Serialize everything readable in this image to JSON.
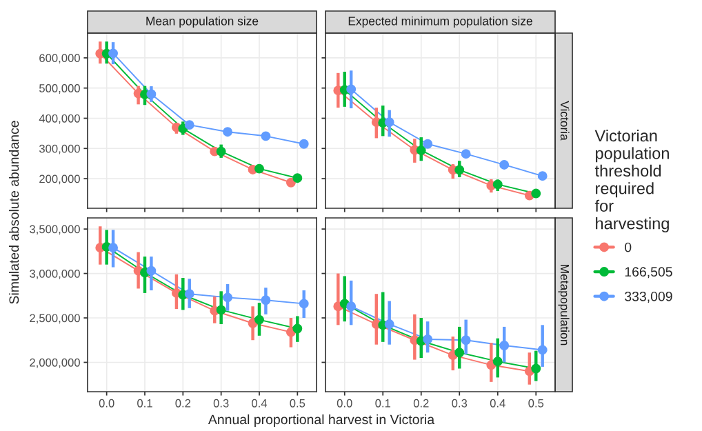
{
  "chart_data": [
    {
      "type": "line",
      "title": "Mean population size",
      "ylabel": "Simulated absolute abundance",
      "tick_labels": "y",
      "grid": true,
      "marker": "circle",
      "line_style": "solid",
      "legend": "right",
      "legend_title": "Victorian population threshold required for harvesting",
      "xlim": [
        -0.05,
        0.55
      ],
      "xticks": [
        0,
        0.1,
        0.2,
        0.3,
        0.4,
        0.5
      ],
      "ylim": [
        102000,
        682000
      ],
      "yticks": [
        {
          "value": 200000,
          "label": "200,000"
        },
        {
          "value": 300000,
          "label": "300,000"
        },
        {
          "value": 400000,
          "label": "400,000"
        },
        {
          "value": 500000,
          "label": "500,000"
        },
        {
          "value": 600000,
          "label": "600,000"
        }
      ],
      "series": [
        {
          "name": "0",
          "color": "#f8766d",
          "x": [
            -0.017,
            0.083,
            0.183,
            0.283,
            0.383,
            0.483
          ],
          "values": [
            614000,
            482000,
            370000,
            290000,
            230000,
            187000
          ],
          "errors": [
            [
              581000,
              654000
            ],
            [
              446000,
              507000
            ],
            [
              349000,
              385000
            ],
            [
              279000,
              301000
            ],
            [
              225000,
              237000
            ],
            [
              181000,
              193000
            ]
          ]
        },
        {
          "name": "166,505",
          "color": "#00ba38",
          "x": [
            0,
            0.1,
            0.2,
            0.3,
            0.4,
            0.5
          ],
          "values": [
            614000,
            479000,
            366000,
            290000,
            233000,
            202000
          ],
          "errors": [
            [
              581000,
              654000
            ],
            [
              444000,
              507000
            ],
            [
              345000,
              389000
            ],
            [
              269000,
              313000
            ],
            [
              225000,
              240000
            ],
            null
          ]
        },
        {
          "name": "333,009",
          "color": "#619cff",
          "x": [
            0.017,
            0.117,
            0.217,
            0.317,
            0.417,
            0.517
          ],
          "values": [
            615000,
            480000,
            378000,
            355000,
            341000,
            315000
          ],
          "errors": [
            [
              579000,
              652000
            ],
            [
              454000,
              506000
            ],
            [
              371000,
              385000
            ],
            null,
            null,
            null
          ]
        }
      ]
    },
    {
      "type": "line",
      "title": "Expected minimum population size",
      "y2label": "Victoria",
      "tick_labels": false,
      "grid": true,
      "marker": "circle",
      "line_style": "solid",
      "legend": "right",
      "xlim": [
        -0.05,
        0.55
      ],
      "xticks": [
        0,
        0.1,
        0.2,
        0.3,
        0.4,
        0.5
      ],
      "ylim": [
        102000,
        682000
      ],
      "yticks": [
        200000,
        300000,
        400000,
        500000,
        600000
      ],
      "series": [
        {
          "name": "0",
          "color": "#f8766d",
          "x": [
            -0.017,
            0.083,
            0.183,
            0.283,
            0.383,
            0.483
          ],
          "values": [
            492000,
            387000,
            295000,
            229000,
            177000,
            144000
          ],
          "errors": [
            [
              435000,
              550000
            ],
            [
              334000,
              435000
            ],
            [
              253000,
              332000
            ],
            [
              200000,
              248000
            ],
            [
              154000,
              198000
            ],
            [
              134000,
              154000
            ]
          ]
        },
        {
          "name": "166,505",
          "color": "#00ba38",
          "x": [
            0,
            0.1,
            0.2,
            0.3,
            0.4,
            0.5
          ],
          "values": [
            494000,
            385000,
            294000,
            229000,
            181000,
            151000
          ],
          "errors": [
            [
              438000,
              554000
            ],
            [
              341000,
              442000
            ],
            [
              259000,
              337000
            ],
            [
              205000,
              259000
            ],
            [
              159000,
              197000
            ],
            [
              144000,
              158000
            ]
          ]
        },
        {
          "name": "333,009",
          "color": "#619cff",
          "x": [
            0.017,
            0.117,
            0.217,
            0.317,
            0.417,
            0.517
          ],
          "values": [
            496000,
            387000,
            315000,
            282000,
            246000,
            209000
          ],
          "errors": [
            [
              433000,
              558000
            ],
            [
              339000,
              427000
            ],
            [
              305000,
              324000
            ],
            [
              269000,
              294000
            ],
            [
              235000,
              256000
            ],
            [
              195000,
              223000
            ]
          ]
        }
      ]
    },
    {
      "type": "line",
      "xlabel": "Annual proportional harvest in Victoria",
      "grid": true,
      "marker": "circle",
      "line_style": "solid",
      "legend": "right",
      "xlim": [
        -0.05,
        0.55
      ],
      "xticks": [
        {
          "value": 0,
          "label": "0.0"
        },
        0.1,
        0.2,
        0.3,
        0.4,
        0.5
      ],
      "ylim": [
        1670000,
        3625000
      ],
      "yticks": [
        {
          "value": 2000000,
          "label": "2,000,000"
        },
        {
          "value": 2500000,
          "label": "2,500,000"
        },
        {
          "value": 3000000,
          "label": "3,000,000"
        },
        {
          "value": 3500000,
          "label": "3,500,000"
        }
      ],
      "series": [
        {
          "name": "0",
          "color": "#f8766d",
          "x": [
            -0.017,
            0.083,
            0.183,
            0.283,
            0.383,
            0.483
          ],
          "values": [
            3290000,
            3030000,
            2780000,
            2580000,
            2440000,
            2340000
          ],
          "errors": [
            [
              3100000,
              3530000
            ],
            [
              2830000,
              3240000
            ],
            [
              2600000,
              2990000
            ],
            [
              2440000,
              2740000
            ],
            [
              2250000,
              2630000
            ],
            [
              2170000,
              2500000
            ]
          ]
        },
        {
          "name": "166,505",
          "color": "#00ba38",
          "x": [
            0,
            0.1,
            0.2,
            0.3,
            0.4,
            0.5
          ],
          "values": [
            3300000,
            3010000,
            2760000,
            2590000,
            2480000,
            2380000
          ],
          "errors": [
            [
              3100000,
              3490000
            ],
            [
              2780000,
              3190000
            ],
            [
              2590000,
              2950000
            ],
            [
              2430000,
              2800000
            ],
            [
              2300000,
              2670000
            ],
            [
              2230000,
              2520000
            ]
          ]
        },
        {
          "name": "333,009",
          "color": "#619cff",
          "x": [
            0.017,
            0.117,
            0.217,
            0.317,
            0.417,
            0.517
          ],
          "values": [
            3290000,
            3030000,
            2770000,
            2730000,
            2700000,
            2660000
          ],
          "errors": [
            [
              3070000,
              3490000
            ],
            [
              2810000,
              3190000
            ],
            [
              2610000,
              2940000
            ],
            [
              2580000,
              2880000
            ],
            [
              2540000,
              2840000
            ],
            [
              2500000,
              2810000
            ]
          ]
        }
      ]
    },
    {
      "type": "line",
      "y2label": "Metapopulation",
      "tick_labels": "x",
      "grid": true,
      "marker": "circle",
      "line_style": "solid",
      "legend": "right",
      "xlim": [
        -0.05,
        0.55
      ],
      "xticks": [
        {
          "value": 0,
          "label": "0.0"
        },
        0.1,
        0.2,
        0.3,
        0.4,
        0.5
      ],
      "ylim": [
        1670000,
        3625000
      ],
      "yticks": [
        2000000,
        2500000,
        3000000,
        3500000
      ],
      "series": [
        {
          "name": "0",
          "color": "#f8766d",
          "x": [
            -0.017,
            0.083,
            0.183,
            0.283,
            0.383,
            0.483
          ],
          "values": [
            2630000,
            2430000,
            2250000,
            2080000,
            1970000,
            1900000
          ],
          "errors": [
            [
              2420000,
              3000000
            ],
            [
              2200000,
              2770000
            ],
            [
              2030000,
              2540000
            ],
            [
              1910000,
              2290000
            ],
            [
              1780000,
              2220000
            ],
            [
              1750000,
              2110000
            ]
          ]
        },
        {
          "name": "166,505",
          "color": "#00ba38",
          "x": [
            0,
            0.1,
            0.2,
            0.3,
            0.4,
            0.5
          ],
          "values": [
            2660000,
            2420000,
            2240000,
            2110000,
            2010000,
            1930000
          ],
          "errors": [
            [
              2460000,
              2970000
            ],
            [
              2230000,
              2790000
            ],
            [
              2050000,
              2500000
            ],
            [
              1930000,
              2400000
            ],
            [
              1830000,
              2270000
            ],
            [
              1790000,
              2130000
            ]
          ]
        },
        {
          "name": "333,009",
          "color": "#619cff",
          "x": [
            0.017,
            0.117,
            0.217,
            0.317,
            0.417,
            0.517
          ],
          "values": [
            2630000,
            2430000,
            2260000,
            2250000,
            2190000,
            2140000
          ],
          "errors": [
            [
              2420000,
              2920000
            ],
            [
              2200000,
              2690000
            ],
            [
              2110000,
              2460000
            ],
            [
              2090000,
              2480000
            ],
            [
              2000000,
              2400000
            ],
            [
              1950000,
              2420000
            ]
          ]
        }
      ]
    }
  ]
}
